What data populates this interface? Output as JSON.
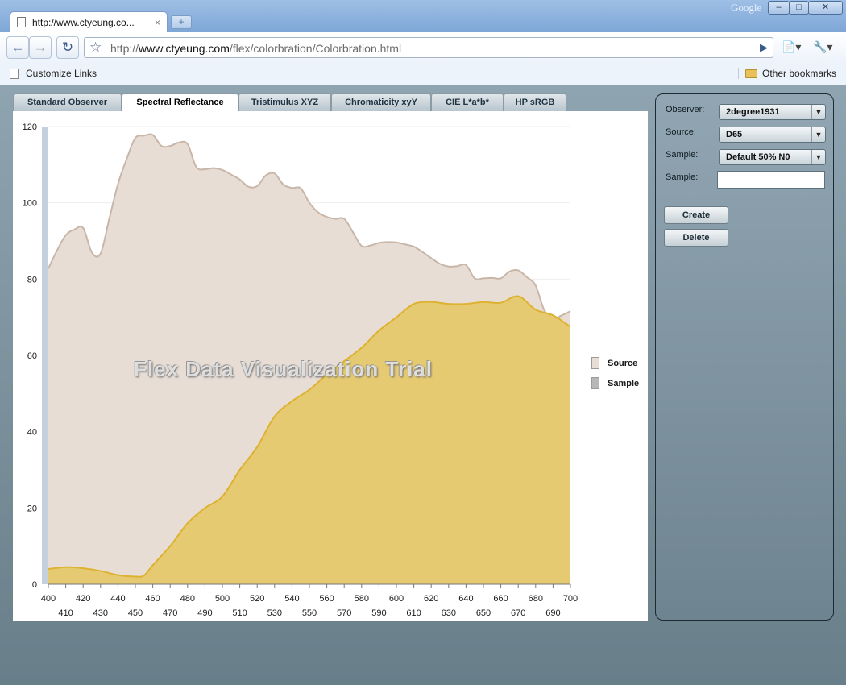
{
  "browser": {
    "tab_title": "http://www.ctyeung.co...",
    "tab_close": "×",
    "new_tab": "+",
    "brand": "Google",
    "url_prefix": "http://",
    "url_host": "www.ctyeung.com",
    "url_path": "/flex/colorbration/Colorbration.html",
    "bookmark_left": "Customize Links",
    "bookmark_right": "Other bookmarks"
  },
  "tabs": [
    {
      "label": "Standard Observer"
    },
    {
      "label": "Spectral Reflectance"
    },
    {
      "label": "Tristimulus XYZ"
    },
    {
      "label": "Chromaticity xyY"
    },
    {
      "label": "CIE L*a*b*"
    },
    {
      "label": "HP sRGB"
    }
  ],
  "active_tab": "Spectral Reflectance",
  "controls": {
    "observer_label": "Observer:",
    "observer_value": "2degree1931",
    "source_label": "Source:",
    "source_value": "D65",
    "sample_label": "Sample:",
    "sample_value": "Default 50% N0",
    "sample_name_label": "Sample:",
    "sample_name_value": "",
    "create_label": "Create",
    "delete_label": "Delete"
  },
  "watermark": "Flex Data Visualization Trial",
  "colors": {
    "source_fill": "#e7ddd5",
    "source_stroke": "#c8b6a8",
    "sample_fill": "#e5c86d",
    "sample_stroke": "#ddb230",
    "axis_band": "#c3d1de"
  },
  "chart_data": {
    "type": "area",
    "xlim": [
      400,
      700
    ],
    "ylim": [
      0,
      120
    ],
    "yticks": [
      0,
      20,
      40,
      60,
      80,
      100,
      120
    ],
    "xticks_top": [
      400,
      420,
      440,
      460,
      480,
      500,
      520,
      540,
      560,
      580,
      600,
      620,
      640,
      660,
      680,
      700
    ],
    "xticks_bottom": [
      410,
      430,
      450,
      470,
      490,
      510,
      530,
      550,
      570,
      590,
      610,
      630,
      650,
      670,
      690
    ],
    "legend_position": "right",
    "series": [
      {
        "name": "Source",
        "x": [
          400,
          405,
          410,
          415,
          420,
          425,
          430,
          435,
          440,
          445,
          450,
          455,
          460,
          465,
          470,
          475,
          480,
          485,
          490,
          495,
          500,
          505,
          510,
          515,
          520,
          525,
          530,
          535,
          540,
          545,
          550,
          555,
          560,
          565,
          570,
          575,
          580,
          585,
          590,
          595,
          600,
          605,
          610,
          615,
          620,
          625,
          630,
          635,
          640,
          645,
          650,
          655,
          660,
          665,
          670,
          675,
          680,
          685,
          690,
          695,
          700
        ],
        "values": [
          82.8,
          87.5,
          91.5,
          93.0,
          93.4,
          87.0,
          86.7,
          95.8,
          104.9,
          111.5,
          117.0,
          117.6,
          117.8,
          114.9,
          114.9,
          115.8,
          115.4,
          109.4,
          108.8,
          109.1,
          108.6,
          107.4,
          106.1,
          104.2,
          104.4,
          107.2,
          107.7,
          104.8,
          103.9,
          103.8,
          100.0,
          97.5,
          96.3,
          95.8,
          95.8,
          92.3,
          88.7,
          88.8,
          89.5,
          89.7,
          89.6,
          89.1,
          88.5,
          87.1,
          85.5,
          84.0,
          83.3,
          83.4,
          83.7,
          80.2,
          80.2,
          80.3,
          80.2,
          82.0,
          82.3,
          80.5,
          78.3,
          71.8,
          69.7,
          70.5,
          71.6
        ]
      },
      {
        "name": "Sample",
        "x": [
          400,
          410,
          420,
          430,
          440,
          450,
          455,
          460,
          470,
          480,
          490,
          500,
          510,
          520,
          530,
          540,
          550,
          560,
          570,
          580,
          590,
          600,
          610,
          620,
          630,
          640,
          650,
          660,
          670,
          680,
          690,
          700
        ],
        "values": [
          4.0,
          4.5,
          4.2,
          3.5,
          2.4,
          2.0,
          2.3,
          5.0,
          10.0,
          16.0,
          20.0,
          23.0,
          30.0,
          36.0,
          44.0,
          48.0,
          51.0,
          55.0,
          58.5,
          62.0,
          66.5,
          70.0,
          73.5,
          74.0,
          73.5,
          73.5,
          74.0,
          73.8,
          75.5,
          72.0,
          70.5,
          67.5
        ]
      }
    ]
  }
}
